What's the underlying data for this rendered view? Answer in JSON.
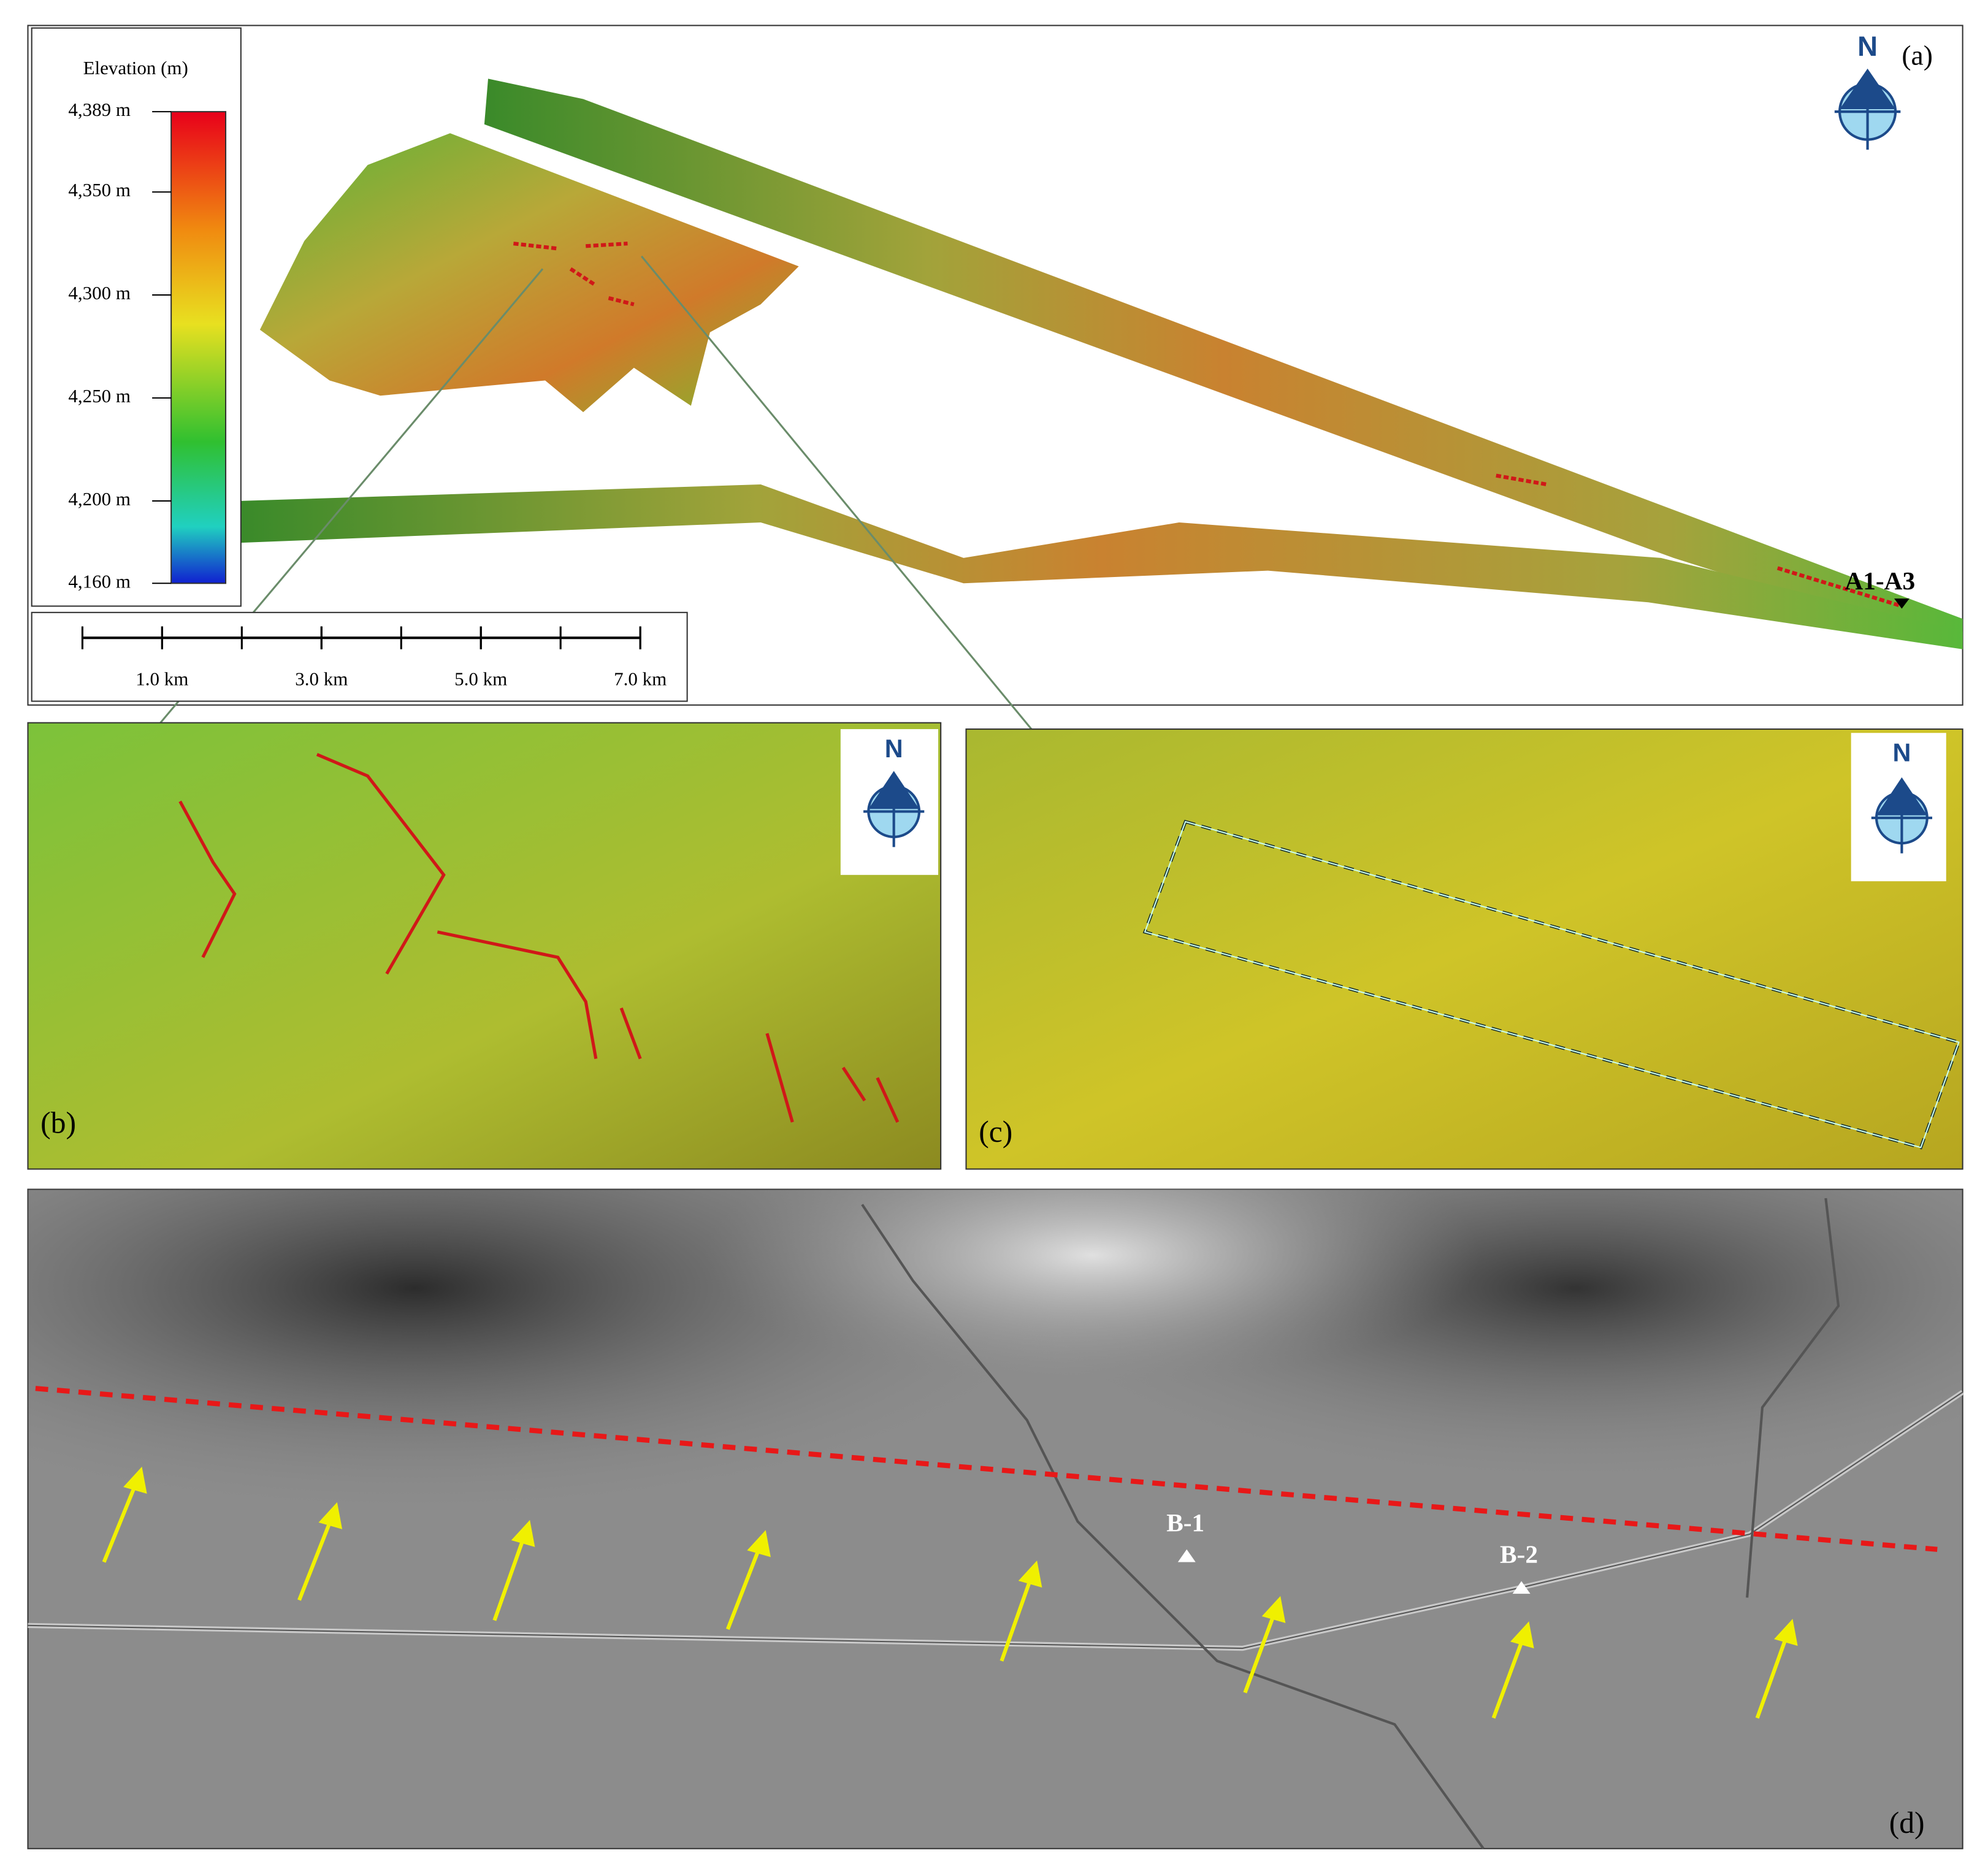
{
  "panel_a": {
    "label": "(a)",
    "north": "N",
    "site": "A1-A3",
    "legend": {
      "title": "Elevation (m)",
      "range": [
        4160,
        4389
      ],
      "ticks": [
        {
          "value": 4389,
          "label": "4,389 m"
        },
        {
          "value": 4350,
          "label": "4,350 m"
        },
        {
          "value": 4300,
          "label": "4,300 m"
        },
        {
          "value": 4250,
          "label": "4,250 m"
        },
        {
          "value": 4200,
          "label": "4,200 m"
        },
        {
          "value": 4160,
          "label": "4,160 m"
        }
      ]
    },
    "scale_bar": {
      "range": [
        0,
        7
      ],
      "ticks": [
        {
          "value": 1,
          "label": "1.0 km"
        },
        {
          "value": 3,
          "label": "3.0 km"
        },
        {
          "value": 5,
          "label": "5.0 km"
        },
        {
          "value": 7,
          "label": "7.0 km"
        }
      ]
    }
  },
  "panel_b": {
    "label": "(b)",
    "north": "N"
  },
  "panel_c": {
    "label": "(c)",
    "north": "N"
  },
  "panel_d": {
    "label": "(d)",
    "sites": [
      "B-1",
      "B-2"
    ]
  }
}
